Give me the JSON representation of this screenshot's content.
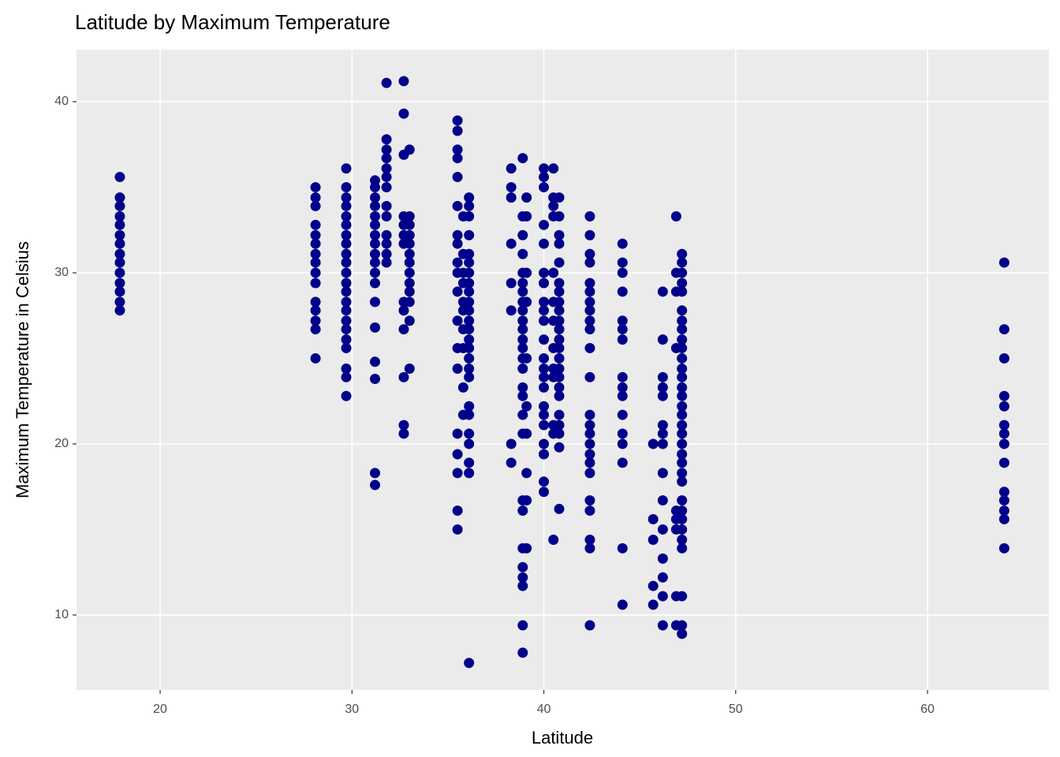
{
  "chart_data": {
    "type": "scatter",
    "title": "Latitude by Maximum Temperature",
    "x_label": "Latitude",
    "y_label": "Maximum Temperature in Celsius",
    "color": "#00008B",
    "grid": true,
    "xlim": [
      15.64,
      66.33
    ],
    "ylim": [
      5.62,
      43.04
    ],
    "xticks": [
      20,
      30,
      40,
      50,
      60
    ],
    "yticks": [
      10,
      20,
      30,
      40
    ],
    "x": [
      17.9,
      17.9,
      17.9,
      17.9,
      17.9,
      17.9,
      17.9,
      17.9,
      17.9,
      17.9,
      17.9,
      17.9,
      17.9,
      17.9,
      28.1,
      28.1,
      28.1,
      28.1,
      28.1,
      28.1,
      28.1,
      28.1,
      28.1,
      28.1,
      28.1,
      28.1,
      28.1,
      28.1,
      28.1,
      29.7,
      29.7,
      29.7,
      29.7,
      29.7,
      29.7,
      29.7,
      29.7,
      29.7,
      29.7,
      29.7,
      29.7,
      29.7,
      29.7,
      29.7,
      29.7,
      29.7,
      29.7,
      29.7,
      29.7,
      29.7,
      29.7,
      31.2,
      31.2,
      31.2,
      31.2,
      31.2,
      31.2,
      31.2,
      31.2,
      31.2,
      31.2,
      31.2,
      31.2,
      31.2,
      31.2,
      31.2,
      31.2,
      31.2,
      31.2,
      31.8,
      31.8,
      31.8,
      31.8,
      31.8,
      31.8,
      31.8,
      31.8,
      31.8,
      31.8,
      31.8,
      31.8,
      31.8,
      32.7,
      32.7,
      32.7,
      32.7,
      32.7,
      32.7,
      32.7,
      32.7,
      32.7,
      32.7,
      32.7,
      32.7,
      32.7,
      33.0,
      33.0,
      33.0,
      33.0,
      33.0,
      33.0,
      33.0,
      33.0,
      33.0,
      33.0,
      33.0,
      33.0,
      33.0,
      35.5,
      35.5,
      35.5,
      35.5,
      35.5,
      35.5,
      35.5,
      35.5,
      35.5,
      35.5,
      35.5,
      35.5,
      35.5,
      35.5,
      35.5,
      35.5,
      35.5,
      35.5,
      35.5,
      35.8,
      35.8,
      35.8,
      35.8,
      35.8,
      35.8,
      35.8,
      35.8,
      35.8,
      35.8,
      36.1,
      36.1,
      36.1,
      36.1,
      36.1,
      36.1,
      36.1,
      36.1,
      36.1,
      36.1,
      36.1,
      36.1,
      36.1,
      36.1,
      36.1,
      36.1,
      36.1,
      36.1,
      36.1,
      36.1,
      36.1,
      36.1,
      36.1,
      36.1,
      36.1,
      38.3,
      38.3,
      38.3,
      38.3,
      38.3,
      38.3,
      38.3,
      38.3,
      38.9,
      38.9,
      38.9,
      38.9,
      38.9,
      38.9,
      38.9,
      38.9,
      38.9,
      38.9,
      38.9,
      38.9,
      38.9,
      38.9,
      38.9,
      38.9,
      38.9,
      38.9,
      38.9,
      38.9,
      38.9,
      38.9,
      38.9,
      38.9,
      38.9,
      38.9,
      38.9,
      39.1,
      39.1,
      39.1,
      39.1,
      39.1,
      39.1,
      39.1,
      39.1,
      39.1,
      39.1,
      40.0,
      40.0,
      40.0,
      40.0,
      40.0,
      40.0,
      40.0,
      40.0,
      40.0,
      40.0,
      40.0,
      40.0,
      40.0,
      40.0,
      40.0,
      40.0,
      40.0,
      40.0,
      40.0,
      40.0,
      40.0,
      40.0,
      40.5,
      40.5,
      40.5,
      40.5,
      40.5,
      40.5,
      40.5,
      40.5,
      40.5,
      40.5,
      40.5,
      40.5,
      40.5,
      40.8,
      40.8,
      40.8,
      40.8,
      40.8,
      40.8,
      40.8,
      40.8,
      40.8,
      40.8,
      40.8,
      40.8,
      40.8,
      40.8,
      40.8,
      40.8,
      40.8,
      40.8,
      40.8,
      40.8,
      40.8,
      40.8,
      40.8,
      42.4,
      42.4,
      42.4,
      42.4,
      42.4,
      42.4,
      42.4,
      42.4,
      42.4,
      42.4,
      42.4,
      42.4,
      42.4,
      42.4,
      42.4,
      42.4,
      42.4,
      42.4,
      42.4,
      42.4,
      42.4,
      42.4,
      42.4,
      42.4,
      44.1,
      44.1,
      44.1,
      44.1,
      44.1,
      44.1,
      44.1,
      44.1,
      44.1,
      44.1,
      44.1,
      44.1,
      44.1,
      44.1,
      44.1,
      44.1,
      45.7,
      45.7,
      45.7,
      45.7,
      45.7,
      46.2,
      46.2,
      46.2,
      46.2,
      46.2,
      46.2,
      46.2,
      46.2,
      46.2,
      46.2,
      46.2,
      46.2,
      46.2,
      46.2,
      46.2,
      46.9,
      46.9,
      46.9,
      46.9,
      46.9,
      46.9,
      46.9,
      46.9,
      46.9,
      47.2,
      47.2,
      47.2,
      47.2,
      47.2,
      47.2,
      47.2,
      47.2,
      47.2,
      47.2,
      47.2,
      47.2,
      47.2,
      47.2,
      47.2,
      47.2,
      47.2,
      47.2,
      47.2,
      47.2,
      47.2,
      47.2,
      47.2,
      47.2,
      47.2,
      47.2,
      47.2,
      47.2,
      47.2,
      47.2,
      47.2,
      47.2,
      47.2,
      64.0,
      64.0,
      64.0,
      64.0,
      64.0,
      64.0,
      64.0,
      64.0,
      64.0,
      64.0,
      64.0,
      64.0,
      64.0,
      64.0
    ],
    "y": [
      35.6,
      34.4,
      33.9,
      33.3,
      32.8,
      32.2,
      31.7,
      31.1,
      30.6,
      30,
      29.4,
      28.9,
      28.3,
      27.8,
      35,
      34.4,
      33.9,
      32.8,
      32.2,
      31.7,
      31.1,
      30.6,
      30,
      29.4,
      28.3,
      27.8,
      27.2,
      26.7,
      25,
      36.1,
      35,
      34.4,
      33.9,
      33.3,
      32.8,
      32.2,
      31.7,
      31.1,
      30.6,
      30,
      29.4,
      28.9,
      28.3,
      27.8,
      27.2,
      26.7,
      26.1,
      25.6,
      24.4,
      23.9,
      22.8,
      35.4,
      35,
      34.4,
      33.9,
      33.3,
      32.8,
      32.2,
      31.7,
      31.1,
      30.6,
      30,
      29.4,
      28.3,
      26.8,
      24.8,
      23.8,
      18.3,
      17.6,
      41.1,
      37.8,
      37.2,
      36.7,
      36.1,
      35.6,
      35,
      33.9,
      33.3,
      32.2,
      31.7,
      31.1,
      30.6,
      41.2,
      39.3,
      36.9,
      33.3,
      32.8,
      32.2,
      31.7,
      28.3,
      27.8,
      26.7,
      23.9,
      21.1,
      20.6,
      37.2,
      33.3,
      32.8,
      32.2,
      31.7,
      31.1,
      30.6,
      30,
      29.4,
      28.9,
      28.3,
      27.2,
      24.4,
      38.9,
      38.3,
      37.2,
      36.7,
      35.6,
      33.9,
      32.2,
      31.7,
      30.6,
      30,
      28.9,
      27.2,
      25.6,
      24.4,
      20.6,
      19.4,
      18.3,
      16.1,
      15,
      33.3,
      31.1,
      30,
      29.4,
      28.3,
      27.8,
      26.7,
      25.6,
      23.3,
      21.7,
      34.4,
      33.9,
      33.3,
      32.2,
      31.1,
      30.6,
      30,
      29.4,
      28.9,
      28.3,
      27.8,
      27.2,
      26.7,
      26.1,
      25.6,
      25,
      24.4,
      23.9,
      22.2,
      21.7,
      20.6,
      20,
      18.9,
      18.3,
      7.2,
      36.1,
      35,
      34.4,
      31.7,
      29.4,
      27.8,
      20,
      18.9,
      36.7,
      33.3,
      32.2,
      31.1,
      30,
      29.4,
      28.9,
      28.3,
      27.8,
      27.2,
      26.7,
      26.1,
      25.6,
      25,
      24.4,
      23.3,
      22.8,
      21.7,
      20.6,
      16.7,
      16.1,
      13.9,
      12.8,
      12.2,
      11.7,
      9.4,
      7.8,
      34.4,
      33.3,
      30,
      28.3,
      25,
      22.2,
      20.6,
      18.3,
      16.7,
      13.9,
      36.1,
      35.6,
      35,
      32.8,
      31.7,
      30,
      29.4,
      28.3,
      27.8,
      27.2,
      26.1,
      25,
      24.4,
      23.9,
      23.3,
      22.2,
      21.7,
      21.1,
      20,
      19.4,
      17.8,
      17.2,
      36.1,
      34.4,
      33.9,
      33.3,
      30,
      28.3,
      27.2,
      25.6,
      24.4,
      23.9,
      21.1,
      20.6,
      14.4,
      34.4,
      33.3,
      32.2,
      31.7,
      30.6,
      29.4,
      28.9,
      28.3,
      27.8,
      27.2,
      26.7,
      26.1,
      25.6,
      25,
      24.4,
      23.9,
      23.3,
      22.8,
      21.7,
      21.1,
      20.6,
      19.8,
      16.2,
      33.3,
      32.2,
      31.1,
      30.6,
      29.4,
      28.9,
      28.3,
      27.8,
      27.2,
      26.7,
      25.6,
      23.9,
      21.7,
      21.1,
      20.6,
      20,
      19.4,
      18.9,
      18.3,
      16.7,
      16.1,
      14.4,
      13.9,
      9.4,
      31.7,
      30.6,
      30,
      28.9,
      27.2,
      26.7,
      26.1,
      23.9,
      23.3,
      22.8,
      21.7,
      20.6,
      20,
      18.9,
      13.9,
      10.6,
      20,
      15.6,
      14.4,
      11.7,
      10.6,
      28.9,
      26.1,
      23.9,
      23.3,
      22.8,
      21.1,
      20.6,
      20,
      18.3,
      16.7,
      15,
      13.3,
      12.2,
      11.1,
      9.4,
      33.3,
      30,
      28.9,
      25.6,
      16.1,
      15.6,
      15,
      11.1,
      9.4,
      31.1,
      30.6,
      30,
      29.4,
      28.9,
      27.8,
      27.2,
      26.7,
      26.1,
      25.6,
      25,
      24.4,
      23.9,
      23.3,
      22.8,
      22.2,
      21.7,
      21.1,
      20.6,
      20,
      19.4,
      18.9,
      18.3,
      17.8,
      16.7,
      16.1,
      15.6,
      15,
      14.4,
      13.9,
      11.1,
      9.4,
      8.9,
      30.6,
      26.7,
      25,
      22.8,
      22.2,
      21.1,
      20.6,
      20,
      18.9,
      17.2,
      16.7,
      16.1,
      15.6,
      13.9
    ]
  }
}
